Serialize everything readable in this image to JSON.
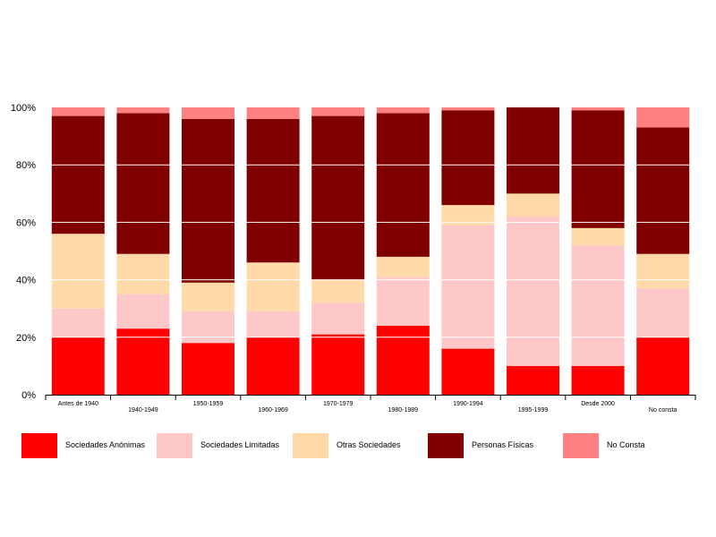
{
  "chart_data": {
    "type": "bar",
    "stacked": true,
    "percent": true,
    "categories": [
      "Antes de 1940",
      "1940-1949",
      "1950-1959",
      "1960-1969",
      "1970-1979",
      "1980-1989",
      "1990-1994",
      "1995-1999",
      "Desde 2000",
      "No consta"
    ],
    "series": [
      {
        "name": "Sociedades Anónimas",
        "color": "#ff0000",
        "values": [
          20,
          23,
          18,
          20,
          21,
          24,
          16,
          10,
          10,
          20
        ]
      },
      {
        "name": "Sociedades Limitadas",
        "color": "#ffc8c8",
        "values": [
          10,
          12,
          11,
          9,
          11,
          17,
          43,
          52,
          42,
          17
        ]
      },
      {
        "name": "Otras Sociedades",
        "color": "#ffdaa8",
        "values": [
          26,
          14,
          10,
          17,
          8,
          7,
          7,
          8,
          6,
          12
        ]
      },
      {
        "name": "Personas Físicas",
        "color": "#800000",
        "values": [
          41,
          49,
          57,
          50,
          57,
          50,
          33,
          30,
          41,
          44
        ]
      },
      {
        "name": "No Consta",
        "color": "#ff8080",
        "values": [
          3,
          2,
          4,
          4,
          3,
          2,
          1,
          0,
          1,
          7
        ]
      }
    ],
    "yticks": [
      "0%",
      "20%",
      "40%",
      "60%",
      "80%",
      "100%"
    ],
    "ylim": [
      0,
      100
    ],
    "grid": true,
    "legend_position": "bottom"
  }
}
